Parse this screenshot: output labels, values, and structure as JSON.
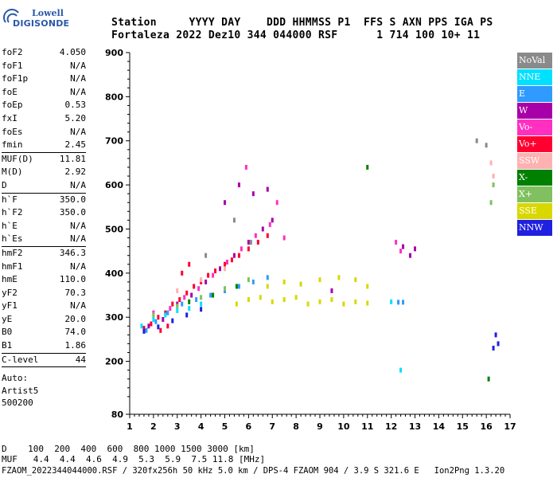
{
  "logo": {
    "line1": "Lowell",
    "line2": "DIGISONDE"
  },
  "header": {
    "line1": "Station     YYYY DAY    DDD HHMMSS P1  FFS S AXN PPS IGA PS",
    "line2": "Fortaleza 2022 Dez10 344 044000 RSF      1 714 100 10+ 11"
  },
  "params": [
    {
      "name": "foF2",
      "value": "4.050"
    },
    {
      "name": "foF1",
      "value": "N/A"
    },
    {
      "name": "foF1p",
      "value": "N/A"
    },
    {
      "name": "foE",
      "value": "N/A"
    },
    {
      "name": "foEp",
      "value": "0.53"
    },
    {
      "name": "fxI",
      "value": "5.20"
    },
    {
      "name": "foEs",
      "value": "N/A"
    },
    {
      "name": "fmin",
      "value": "2.45"
    },
    {
      "name": "MUF(D)",
      "value": "11.81",
      "sep": true
    },
    {
      "name": "M(D)",
      "value": "2.92"
    },
    {
      "name": "D",
      "value": "N/A"
    },
    {
      "name": "h`F",
      "value": "350.0",
      "sep": true
    },
    {
      "name": "h`F2",
      "value": "350.0"
    },
    {
      "name": "h`E",
      "value": "N/A"
    },
    {
      "name": "h`Es",
      "value": "N/A"
    },
    {
      "name": "hmF2",
      "value": "346.3",
      "sep": true
    },
    {
      "name": "hmF1",
      "value": "N/A"
    },
    {
      "name": "hmE",
      "value": "110.0"
    },
    {
      "name": "yF2",
      "value": "70.3"
    },
    {
      "name": "yF1",
      "value": "N/A"
    },
    {
      "name": "yE",
      "value": "20.0"
    },
    {
      "name": "B0",
      "value": "74.0"
    },
    {
      "name": "B1",
      "value": "1.86"
    },
    {
      "name": "C-level",
      "value": "44",
      "sep": true
    }
  ],
  "auto": {
    "line1": "Auto:",
    "line2": "Artist5",
    "line3": "500200"
  },
  "legend": [
    {
      "label": "NoVal",
      "color": "#8a8a8a"
    },
    {
      "label": "NNE",
      "color": "#00e0ff"
    },
    {
      "label": "E",
      "color": "#2f9bff"
    },
    {
      "label": "W",
      "color": "#a800a8"
    },
    {
      "label": "Vo-",
      "color": "#ff30c0"
    },
    {
      "label": "Vo+",
      "color": "#ff0030"
    },
    {
      "label": "SSW",
      "color": "#ffb0b0"
    },
    {
      "label": "X-",
      "color": "#008000"
    },
    {
      "label": "X+",
      "color": "#80c060"
    },
    {
      "label": "SSE",
      "color": "#d8d800"
    },
    {
      "label": "NNW",
      "color": "#2020e0"
    }
  ],
  "bottom": {
    "line1": "D    100  200  400  600  800 1000 1500 3000 [km]",
    "line2": "MUF   4.4  4.4  4.6  4.9  5.3  5.9  7.5 11.8 [MHz]",
    "line3": "FZAOM_2022344044000.RSF / 320fx256h 50 kHz 5.0 km / DPS-4 FZAOM 904 / 3.9 S 321.6 E   Ion2Png 1.3.20"
  },
  "chart_data": {
    "type": "scatter",
    "xlim": [
      1,
      17
    ],
    "ylim": [
      80,
      900
    ],
    "x_ticks": [
      1,
      2,
      3,
      4,
      5,
      6,
      7,
      8,
      9,
      10,
      11,
      12,
      13,
      14,
      15,
      16,
      17
    ],
    "y_ticks": [
      80,
      200,
      300,
      400,
      500,
      600,
      700,
      800,
      900
    ],
    "grid": false,
    "legend_position": "right",
    "series": [
      {
        "name": "Vo+",
        "color": "#ff0030",
        "points": [
          [
            1.6,
            275
          ],
          [
            1.9,
            285
          ],
          [
            2.2,
            300
          ],
          [
            2.5,
            310
          ],
          [
            2.8,
            330
          ],
          [
            3.1,
            340
          ],
          [
            3.4,
            355
          ],
          [
            3.7,
            370
          ],
          [
            4.0,
            380
          ],
          [
            4.3,
            395
          ],
          [
            4.6,
            405
          ],
          [
            5.0,
            420
          ],
          [
            5.3,
            430
          ],
          [
            5.6,
            440
          ],
          [
            6.0,
            455
          ],
          [
            6.4,
            470
          ],
          [
            6.8,
            485
          ],
          [
            3.2,
            400
          ],
          [
            3.5,
            420
          ],
          [
            2.3,
            270
          ],
          [
            2.6,
            280
          ]
        ]
      },
      {
        "name": "W",
        "color": "#a800a8",
        "points": [
          [
            1.8,
            280
          ],
          [
            2.4,
            295
          ],
          [
            3.0,
            330
          ],
          [
            3.6,
            350
          ],
          [
            4.2,
            380
          ],
          [
            4.8,
            410
          ],
          [
            5.4,
            440
          ],
          [
            6.0,
            470
          ],
          [
            6.6,
            500
          ],
          [
            7.0,
            520
          ],
          [
            5.0,
            560
          ],
          [
            5.6,
            600
          ],
          [
            6.2,
            580
          ],
          [
            12.5,
            460
          ],
          [
            12.8,
            440
          ],
          [
            13.0,
            455
          ],
          [
            6.8,
            590
          ],
          [
            9.5,
            360
          ]
        ]
      },
      {
        "name": "Vo-",
        "color": "#ff30c0",
        "points": [
          [
            2.0,
            310
          ],
          [
            2.7,
            320
          ],
          [
            3.3,
            345
          ],
          [
            3.9,
            365
          ],
          [
            4.5,
            395
          ],
          [
            5.1,
            425
          ],
          [
            5.7,
            455
          ],
          [
            6.3,
            485
          ],
          [
            6.9,
            510
          ],
          [
            7.2,
            560
          ],
          [
            7.5,
            480
          ],
          [
            5.9,
            640
          ],
          [
            12.2,
            470
          ],
          [
            12.4,
            450
          ]
        ]
      },
      {
        "name": "SSE",
        "color": "#d8d800",
        "points": [
          [
            5.5,
            330
          ],
          [
            6.0,
            340
          ],
          [
            6.5,
            345
          ],
          [
            7.0,
            335
          ],
          [
            7.5,
            340
          ],
          [
            8.0,
            345
          ],
          [
            8.5,
            330
          ],
          [
            9.0,
            335
          ],
          [
            9.5,
            340
          ],
          [
            10.0,
            330
          ],
          [
            10.5,
            335
          ],
          [
            11.0,
            332
          ],
          [
            6.8,
            370
          ],
          [
            7.5,
            380
          ],
          [
            8.2,
            375
          ],
          [
            9.0,
            385
          ],
          [
            9.8,
            390
          ],
          [
            10.5,
            385
          ],
          [
            11.0,
            370
          ]
        ]
      },
      {
        "name": "E",
        "color": "#2f9bff",
        "points": [
          [
            1.7,
            270
          ],
          [
            2.1,
            290
          ],
          [
            2.6,
            310
          ],
          [
            3.2,
            330
          ],
          [
            3.8,
            340
          ],
          [
            4.4,
            350
          ],
          [
            5.0,
            360
          ],
          [
            5.6,
            370
          ],
          [
            6.2,
            380
          ],
          [
            6.8,
            390
          ],
          [
            12.5,
            334
          ],
          [
            12.3,
            334
          ]
        ]
      },
      {
        "name": "NNE",
        "color": "#00e0ff",
        "points": [
          [
            1.5,
            280
          ],
          [
            2.0,
            295
          ],
          [
            2.5,
            305
          ],
          [
            3.0,
            315
          ],
          [
            3.5,
            320
          ],
          [
            4.0,
            330
          ],
          [
            12.4,
            180
          ],
          [
            12.0,
            335
          ]
        ]
      },
      {
        "name": "NNW",
        "color": "#2020e0",
        "points": [
          [
            1.6,
            268
          ],
          [
            2.2,
            278
          ],
          [
            2.8,
            292
          ],
          [
            3.4,
            305
          ],
          [
            4.0,
            318
          ],
          [
            16.4,
            260
          ],
          [
            16.5,
            240
          ],
          [
            16.3,
            230
          ]
        ]
      },
      {
        "name": "X+",
        "color": "#80c060",
        "points": [
          [
            2.0,
            305
          ],
          [
            3.0,
            325
          ],
          [
            4.0,
            345
          ],
          [
            5.0,
            365
          ],
          [
            6.0,
            385
          ],
          [
            16.3,
            600
          ],
          [
            16.2,
            560
          ]
        ]
      },
      {
        "name": "X-",
        "color": "#008000",
        "points": [
          [
            3.5,
            335
          ],
          [
            4.5,
            350
          ],
          [
            5.5,
            370
          ],
          [
            11.0,
            640
          ],
          [
            16.1,
            160
          ]
        ]
      },
      {
        "name": "SSW",
        "color": "#ffb0b0",
        "points": [
          [
            3.0,
            360
          ],
          [
            4.0,
            385
          ],
          [
            5.0,
            410
          ],
          [
            16.2,
            650
          ],
          [
            16.3,
            620
          ]
        ]
      },
      {
        "name": "NoVal",
        "color": "#8a8a8a",
        "points": [
          [
            4.2,
            440
          ],
          [
            5.4,
            520
          ],
          [
            6.1,
            470
          ],
          [
            16.0,
            690
          ],
          [
            15.6,
            700
          ]
        ]
      }
    ]
  }
}
